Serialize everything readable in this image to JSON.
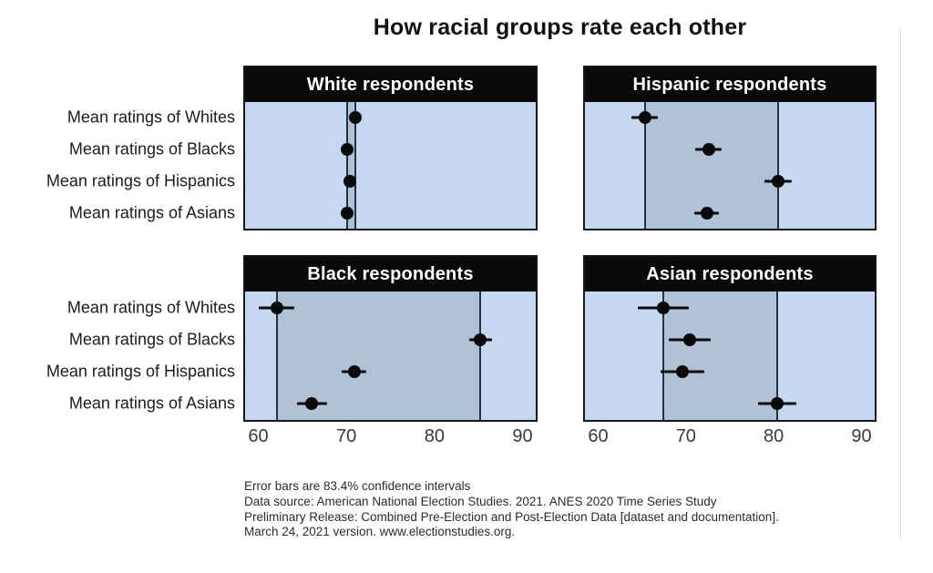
{
  "title": "How racial groups rate each other",
  "footnotes": [
    "Error bars are 83.4% confidence intervals",
    "Data source: American National Election Studies. 2021. ANES 2020 Time Series Study",
    "Preliminary Release: Combined Pre-Election and Post-Election Data [dataset and documentation].",
    "March 24, 2021 version. www.electionstudies.org."
  ],
  "colors": {
    "plot_background": "#c5d8ef",
    "range_band": "#b1c1d6",
    "panel_border": "#14181d",
    "header_background": "#0a0a0b",
    "header_text": "#ffffff",
    "dot": "#0a0a0c",
    "reference_line": "#25313f",
    "tick_text": "#3a3a3a"
  },
  "chart_data": {
    "type": "scatter",
    "title": "How racial groups rate each other",
    "categories": [
      "Mean ratings of Whites",
      "Mean ratings of Blacks",
      "Mean ratings of Hispanics",
      "Mean ratings of Asians"
    ],
    "xlim": [
      58.5,
      91.5
    ],
    "xticks": [
      60,
      70,
      80,
      90
    ],
    "grid": false,
    "legend": "none",
    "error_bar_meaning": "83.4% confidence intervals",
    "band_meaning": "shaded band spans minimum to maximum mean within each panel, bounded by vertical reference lines",
    "panels": [
      {
        "label": "White respondents",
        "values": [
          71.0,
          70.1,
          70.4,
          70.1
        ],
        "ci_half_width": [
          0.4,
          0.4,
          0.4,
          0.4
        ]
      },
      {
        "label": "Hispanic respondents",
        "values": [
          65.3,
          72.6,
          80.5,
          72.4
        ],
        "ci_half_width": [
          1.5,
          1.5,
          1.6,
          1.4
        ]
      },
      {
        "label": "Black respondents",
        "values": [
          62.1,
          85.2,
          70.9,
          66.1
        ],
        "ci_half_width": [
          2.0,
          1.3,
          1.4,
          1.7
        ]
      },
      {
        "label": "Asian respondents",
        "values": [
          67.4,
          70.4,
          69.6,
          80.4
        ],
        "ci_half_width": [
          2.9,
          2.4,
          2.5,
          2.2
        ]
      }
    ]
  }
}
